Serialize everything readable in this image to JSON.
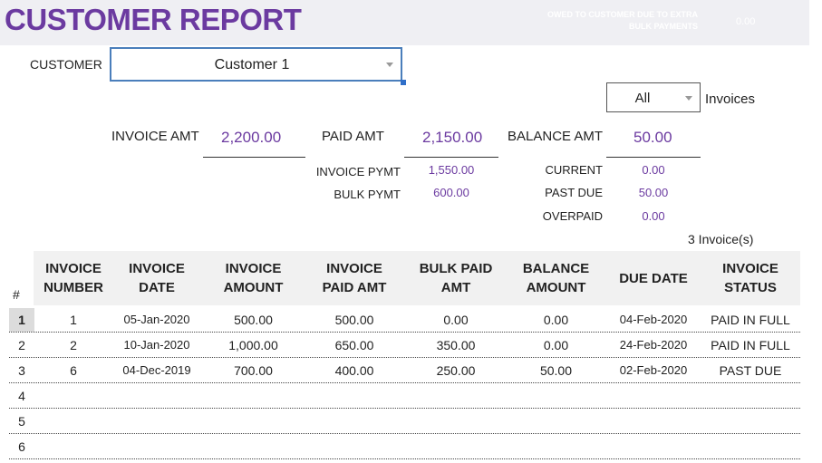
{
  "header": {
    "title": "CUSTOMER REPORT",
    "note_line1": "OWED TO CUSTOMER DUE TO EXTRA",
    "note_line2": "BULK PAYMENTS",
    "note_value": "0.00"
  },
  "customer": {
    "label": "CUSTOMER",
    "value": "Customer 1"
  },
  "filter": {
    "value": "All",
    "label": "Invoices"
  },
  "summary": {
    "invoice_amt_label": "INVOICE AMT",
    "invoice_amt": "2,200.00",
    "paid_amt_label": "PAID AMT",
    "paid_amt": "2,150.00",
    "balance_amt_label": "BALANCE AMT",
    "balance_amt": "50.00",
    "invoice_pymt_label": "INVOICE  PYMT",
    "invoice_pymt": "1,550.00",
    "bulk_pymt_label": "BULK PYMT",
    "bulk_pymt": "600.00",
    "current_label": "CURRENT",
    "current": "0.00",
    "past_due_label": "PAST DUE",
    "past_due": "50.00",
    "overpaid_label": "OVERPAID",
    "overpaid": "0.00",
    "invoice_count": "3  Invoice(s)"
  },
  "table": {
    "hash": "#",
    "headers": [
      [
        "INVOICE",
        "NUMBER"
      ],
      [
        "INVOICE",
        "DATE"
      ],
      [
        "INVOICE",
        "AMOUNT"
      ],
      [
        "INVOICE",
        "PAID AMT"
      ],
      [
        "BULK PAID",
        "AMT"
      ],
      [
        "BALANCE",
        "AMOUNT"
      ],
      [
        "DUE DATE",
        ""
      ],
      [
        "INVOICE",
        "STATUS"
      ]
    ],
    "rows": [
      {
        "n": "1",
        "cells": [
          "1",
          "05-Jan-2020",
          "500.00",
          "500.00",
          "0.00",
          "0.00",
          "04-Feb-2020",
          "PAID IN FULL"
        ]
      },
      {
        "n": "2",
        "cells": [
          "2",
          "10-Jan-2020",
          "1,000.00",
          "650.00",
          "350.00",
          "0.00",
          "24-Feb-2020",
          "PAID IN FULL"
        ]
      },
      {
        "n": "3",
        "cells": [
          "6",
          "04-Dec-2019",
          "700.00",
          "400.00",
          "250.00",
          "50.00",
          "02-Feb-2020",
          "PAST DUE"
        ]
      },
      {
        "n": "4",
        "cells": [
          "",
          "",
          "",
          "",
          "",
          "",
          "",
          ""
        ]
      },
      {
        "n": "5",
        "cells": [
          "",
          "",
          "",
          "",
          "",
          "",
          "",
          ""
        ]
      },
      {
        "n": "6",
        "cells": [
          "",
          "",
          "",
          "",
          "",
          "",
          "",
          ""
        ]
      }
    ]
  },
  "colors": {
    "accent": "#6b3aa0",
    "selection": "#4a7ebb"
  }
}
